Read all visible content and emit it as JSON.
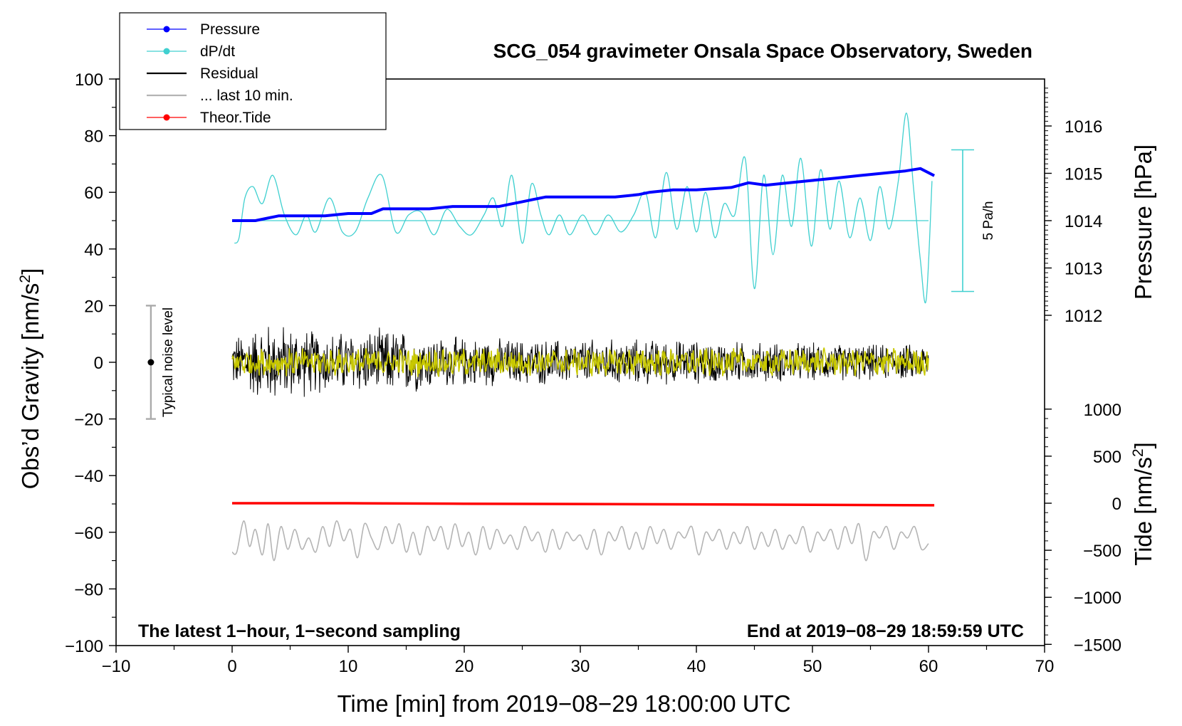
{
  "chart_data": {
    "type": "line",
    "title": "SCG_054 gravimeter Onsala Space Observatory, Sweden",
    "xlabel": "Time [min] from 2019−08−29 18:00:00 UTC",
    "ylabel": "Obs’d Gravity [nm/s",
    "ylabel_sup": "2",
    "ylabel_close": "]",
    "y2label": "Pressure [hPa]",
    "y3label": "Tide [nm/s",
    "y3label_sup": "2",
    "y3label_close": "]",
    "xlim": [
      -10,
      70
    ],
    "ylim": [
      -100,
      100
    ],
    "xticks": [
      -10,
      0,
      10,
      20,
      30,
      40,
      50,
      60,
      70
    ],
    "xtick_labels": [
      "−10",
      "0",
      "10",
      "20",
      "30",
      "40",
      "50",
      "60",
      "70"
    ],
    "yticks": [
      -100,
      -80,
      -60,
      -40,
      -20,
      0,
      20,
      40,
      60,
      80,
      100
    ],
    "ytick_labels": [
      "−100",
      "−80",
      "−60",
      "−40",
      "−20",
      "0",
      "20",
      "40",
      "60",
      "80",
      "100"
    ],
    "pressure_ticks": [
      1012,
      1013,
      1014,
      1015,
      1016
    ],
    "pressure_tick_labels": [
      "1012",
      "1013",
      "1014",
      "1015",
      "1016"
    ],
    "tide_ticks": [
      1000,
      500,
      0,
      -500,
      -1000,
      -1500
    ],
    "tide_tick_labels": [
      "1000",
      "500",
      "0",
      "−500",
      "−1000",
      "−1500"
    ],
    "legend": [
      {
        "label": "Pressure",
        "color": "#0000ff",
        "marker": "dot"
      },
      {
        "label": "dP/dt",
        "color": "#40d0d0",
        "marker": "dot"
      },
      {
        "label": "Residual",
        "color": "#000000",
        "marker": "line"
      },
      {
        "label": "... last 10 min.",
        "color": "#b4b4b4",
        "marker": "line"
      },
      {
        "label": "Theor.Tide",
        "color": "#ff0000",
        "marker": "dot"
      }
    ],
    "legend_position": "top-left",
    "note_left": "The latest 1−hour, 1−second sampling",
    "note_right": "End at 2019−08−29 18:59:59 UTC",
    "noise_label": "Typical noise level",
    "noise_bar": {
      "x": -7,
      "center": 0,
      "low": -20,
      "high": 20
    },
    "dpdt_bar_label": "5 Pa/h",
    "series": [
      {
        "name": "Pressure",
        "unit": "hPa",
        "color": "#0000ff",
        "x": [
          0,
          2,
          4,
          6,
          8,
          10,
          12,
          13,
          15,
          17,
          19,
          21,
          23,
          24,
          25,
          26,
          27,
          29,
          31,
          33,
          35,
          36,
          38,
          40,
          43,
          44.5,
          46,
          48,
          50,
          52,
          54,
          56,
          58,
          59.3,
          60.5
        ],
        "values": [
          1014.0,
          1014.0,
          1014.1,
          1014.1,
          1014.1,
          1014.15,
          1014.15,
          1014.25,
          1014.25,
          1014.25,
          1014.3,
          1014.3,
          1014.3,
          1014.35,
          1014.4,
          1014.45,
          1014.5,
          1014.5,
          1014.5,
          1014.5,
          1014.55,
          1014.6,
          1014.65,
          1014.65,
          1014.7,
          1014.8,
          1014.75,
          1014.8,
          1014.85,
          1014.9,
          1014.95,
          1015.0,
          1015.05,
          1015.1,
          1014.95
        ]
      },
      {
        "name": "dP/dt",
        "unit": "nm/s2 (plot scale)",
        "color": "#40d0d0",
        "baseline": 50,
        "x": [
          0.2,
          0.6,
          1.1,
          1.8,
          2.6,
          3.5,
          4.5,
          5.5,
          6.4,
          7.2,
          8.4,
          9.5,
          10.6,
          11.7,
          12.9,
          14.1,
          15.2,
          16.3,
          17.4,
          18.5,
          19.6,
          20.6,
          21.7,
          22.5,
          23.3,
          24.1,
          25.0,
          25.8,
          26.6,
          27.3,
          28.2,
          29.1,
          30.2,
          31.3,
          32.4,
          33.5,
          34.6,
          35.6,
          36.5,
          37.4,
          38.3,
          39.2,
          40.0,
          40.8,
          41.6,
          42.4,
          43.3,
          44.2,
          45.0,
          45.8,
          46.6,
          47.4,
          48.2,
          49.0,
          49.9,
          50.7,
          51.5,
          52.3,
          53.2,
          54.1,
          55.0,
          55.8,
          56.6,
          57.4,
          58.1,
          58.7,
          59.3,
          59.8,
          60.3
        ],
        "values": [
          42,
          44,
          58,
          62,
          56,
          66,
          52,
          45,
          52,
          46,
          58,
          46,
          46,
          58,
          66,
          46,
          52,
          53,
          45,
          54,
          48,
          45,
          52,
          58,
          48,
          66,
          42,
          63,
          52,
          45,
          52,
          45,
          52,
          45,
          52,
          46,
          52,
          60,
          44,
          67,
          47,
          62,
          46,
          60,
          44,
          56,
          52,
          72,
          26,
          66,
          38,
          66,
          48,
          72,
          41,
          68,
          47,
          64,
          44,
          58,
          43,
          62,
          47,
          64,
          88,
          62,
          36,
          22,
          64
        ]
      },
      {
        "name": "Residual",
        "unit": "nm/s2",
        "color": "#000000",
        "x_start": 0,
        "x_end": 60,
        "amplitude_envelope_x": [
          0,
          3,
          8,
          14,
          18,
          25,
          35,
          45,
          55,
          60
        ],
        "amplitude_envelope": [
          10,
          16,
          12,
          13,
          10,
          9,
          9,
          8,
          7,
          7
        ]
      },
      {
        "name": "Residual smoothed",
        "unit": "nm/s2",
        "color": "#c8c800",
        "x_start": 0,
        "x_end": 60,
        "amplitude": 4
      },
      {
        "name": "... last 10 min.",
        "unit": "nm/s2 (plot scale)",
        "color": "#b4b4b4",
        "center": -62,
        "x": [
          0.0,
          0.4,
          1.0,
          1.5,
          2.0,
          2.6,
          3.1,
          3.6,
          4.2,
          4.8,
          5.4,
          6.0,
          6.6,
          7.2,
          7.8,
          8.4,
          9.0,
          9.6,
          10.2,
          10.8,
          11.4,
          12.0,
          12.6,
          13.2,
          13.8,
          14.4,
          15.0,
          15.6,
          16.2,
          16.8,
          17.4,
          18.0,
          18.6,
          19.2,
          19.8,
          20.4,
          21.0,
          21.6,
          22.2,
          22.8,
          23.4,
          24.0,
          24.6,
          25.2,
          25.8,
          26.4,
          27.0,
          27.6,
          28.2,
          28.8,
          29.4,
          30.0,
          30.6,
          31.2,
          31.8,
          32.4,
          33.0,
          33.6,
          34.2,
          34.8,
          35.4,
          36.0,
          36.6,
          37.2,
          37.8,
          38.4,
          39.0,
          39.6,
          40.2,
          40.8,
          41.4,
          42.0,
          42.6,
          43.2,
          43.8,
          44.4,
          45.0,
          45.6,
          46.2,
          46.8,
          47.4,
          48.0,
          48.6,
          49.2,
          49.8,
          50.4,
          51.0,
          51.6,
          52.2,
          52.8,
          53.4,
          54.0,
          54.6,
          55.2,
          55.8,
          56.4,
          57.0,
          57.6,
          58.2,
          58.8,
          59.4,
          60.0
        ],
        "values": [
          -67,
          -67,
          -56,
          -65,
          -59,
          -68,
          -57,
          -70,
          -58,
          -66,
          -59,
          -66,
          -62,
          -67,
          -58,
          -65,
          -56,
          -63,
          -59,
          -69,
          -57,
          -62,
          -66,
          -58,
          -64,
          -57,
          -67,
          -60,
          -68,
          -58,
          -63,
          -58,
          -66,
          -57,
          -65,
          -60,
          -68,
          -58,
          -66,
          -59,
          -64,
          -61,
          -66,
          -58,
          -63,
          -60,
          -67,
          -59,
          -66,
          -60,
          -63,
          -61,
          -66,
          -59,
          -68,
          -60,
          -63,
          -58,
          -66,
          -60,
          -66,
          -58,
          -64,
          -59,
          -66,
          -60,
          -62,
          -58,
          -68,
          -60,
          -63,
          -59,
          -66,
          -60,
          -64,
          -58,
          -66,
          -60,
          -65,
          -59,
          -66,
          -61,
          -64,
          -58,
          -67,
          -60,
          -63,
          -59,
          -66,
          -58,
          -64,
          -57,
          -70,
          -60,
          -62,
          -58,
          -66,
          -60,
          -62,
          -58,
          -66,
          -64
        ]
      },
      {
        "name": "Theor.Tide",
        "unit": "nm/s2",
        "color": "#ff0000",
        "x": [
          0,
          10,
          20,
          30,
          40,
          50,
          60.5
        ],
        "values": [
          0,
          0,
          -5,
          -8,
          -12,
          -17,
          -22
        ]
      }
    ]
  }
}
